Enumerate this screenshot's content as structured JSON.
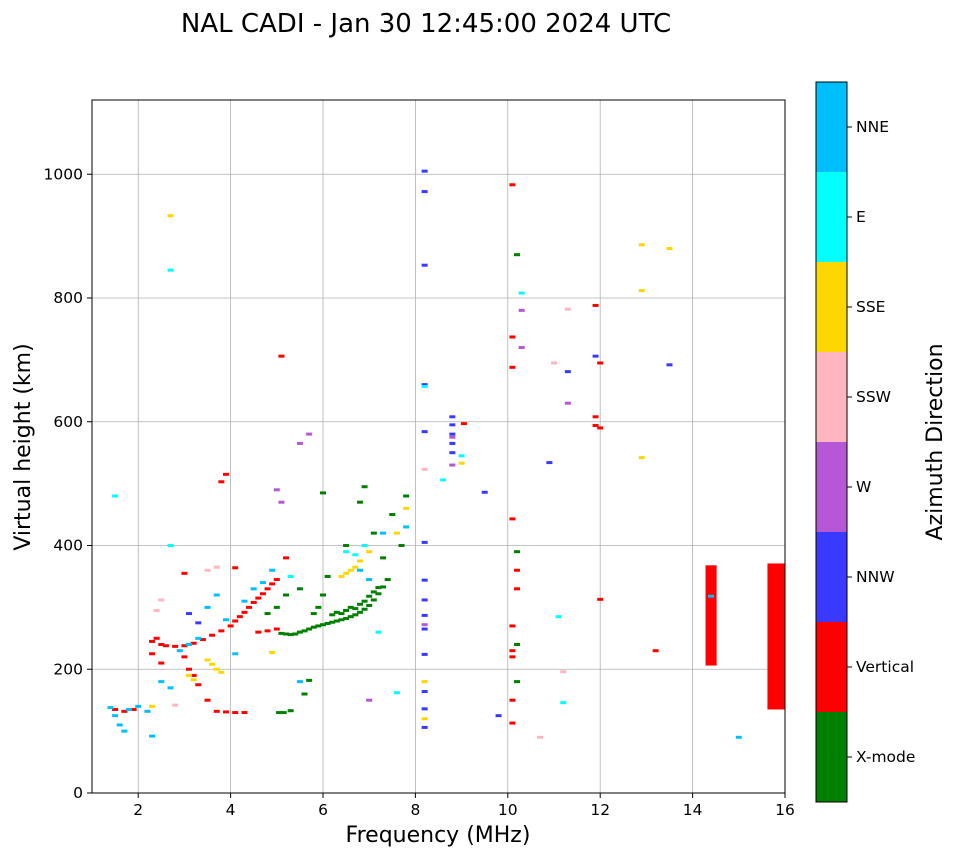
{
  "chart_data": {
    "type": "scatter",
    "title": "NAL CADI - Jan 30 12:45:00 2024 UTC",
    "xlabel": "Frequency (MHz)",
    "ylabel": "Virtual height (km)",
    "xlim": [
      1,
      16
    ],
    "ylim": [
      0,
      1120
    ],
    "xticks": [
      2,
      4,
      6,
      8,
      10,
      12,
      14,
      16
    ],
    "yticks": [
      0,
      200,
      400,
      600,
      800,
      1000
    ],
    "grid": true,
    "colorbar": {
      "label": "Azimuth Direction",
      "categories": [
        {
          "name": "X-mode",
          "color": "#008000"
        },
        {
          "name": "Vertical",
          "color": "#ff0000"
        },
        {
          "name": "NNW",
          "color": "#3a3aff"
        },
        {
          "name": "W",
          "color": "#b657d6"
        },
        {
          "name": "SSW",
          "color": "#ffb6c1"
        },
        {
          "name": "SSE",
          "color": "#ffd700"
        },
        {
          "name": "E",
          "color": "#00ffff"
        },
        {
          "name": "NNE",
          "color": "#00bfff"
        }
      ]
    },
    "series": [
      {
        "name": "X-mode",
        "points": [
          [
            5.05,
            130
          ],
          [
            5.15,
            130
          ],
          [
            5.3,
            133
          ],
          [
            5.6,
            160
          ],
          [
            5.7,
            182
          ],
          [
            5.1,
            258
          ],
          [
            5.2,
            257
          ],
          [
            5.3,
            256
          ],
          [
            5.4,
            257
          ],
          [
            5.5,
            260
          ],
          [
            5.6,
            262
          ],
          [
            5.7,
            265
          ],
          [
            5.8,
            268
          ],
          [
            5.9,
            270
          ],
          [
            6.0,
            272
          ],
          [
            6.1,
            274
          ],
          [
            6.2,
            276
          ],
          [
            6.3,
            278
          ],
          [
            6.4,
            280
          ],
          [
            6.5,
            282
          ],
          [
            6.6,
            285
          ],
          [
            6.7,
            288
          ],
          [
            6.8,
            292
          ],
          [
            6.9,
            297
          ],
          [
            7.0,
            303
          ],
          [
            7.1,
            312
          ],
          [
            7.2,
            322
          ],
          [
            7.3,
            333
          ],
          [
            7.4,
            345
          ],
          [
            6.2,
            288
          ],
          [
            6.3,
            292
          ],
          [
            6.4,
            290
          ],
          [
            6.5,
            295
          ],
          [
            6.6,
            300
          ],
          [
            6.7,
            298
          ],
          [
            6.8,
            305
          ],
          [
            6.9,
            310
          ],
          [
            7.0,
            318
          ],
          [
            7.1,
            325
          ],
          [
            7.2,
            332
          ],
          [
            5.8,
            290
          ],
          [
            5.9,
            300
          ],
          [
            6.0,
            320
          ],
          [
            6.1,
            350
          ],
          [
            6.5,
            400
          ],
          [
            6.8,
            470
          ],
          [
            6.9,
            495
          ],
          [
            7.1,
            420
          ],
          [
            7.3,
            380
          ],
          [
            7.5,
            450
          ],
          [
            5.0,
            300
          ],
          [
            5.2,
            320
          ],
          [
            4.8,
            290
          ],
          [
            5.5,
            330
          ],
          [
            7.7,
            400
          ],
          [
            7.8,
            480
          ],
          [
            10.2,
            390
          ],
          [
            10.2,
            240
          ],
          [
            10.2,
            180
          ],
          [
            10.2,
            870
          ],
          [
            6.0,
            485
          ]
        ]
      },
      {
        "name": "Vertical",
        "points": [
          [
            2.3,
            245
          ],
          [
            2.4,
            250
          ],
          [
            2.5,
            240
          ],
          [
            2.6,
            238
          ],
          [
            2.8,
            237
          ],
          [
            3.0,
            238
          ],
          [
            3.2,
            242
          ],
          [
            3.4,
            248
          ],
          [
            3.6,
            255
          ],
          [
            3.8,
            262
          ],
          [
            4.0,
            270
          ],
          [
            4.1,
            278
          ],
          [
            4.2,
            285
          ],
          [
            4.3,
            292
          ],
          [
            4.4,
            300
          ],
          [
            4.5,
            308
          ],
          [
            4.6,
            315
          ],
          [
            4.7,
            322
          ],
          [
            4.8,
            330
          ],
          [
            4.9,
            338
          ],
          [
            5.0,
            345
          ],
          [
            3.0,
            220
          ],
          [
            3.1,
            200
          ],
          [
            3.2,
            190
          ],
          [
            3.3,
            175
          ],
          [
            3.5,
            150
          ],
          [
            2.3,
            225
          ],
          [
            2.5,
            210
          ],
          [
            3.7,
            132
          ],
          [
            3.9,
            131
          ],
          [
            4.1,
            130
          ],
          [
            4.3,
            130
          ],
          [
            1.5,
            135
          ],
          [
            1.7,
            132
          ],
          [
            1.9,
            135
          ],
          [
            3.9,
            515
          ],
          [
            3.8,
            503
          ],
          [
            5.1,
            706
          ],
          [
            3.0,
            355
          ],
          [
            4.1,
            364
          ],
          [
            5.2,
            380
          ],
          [
            4.6,
            260
          ],
          [
            4.8,
            262
          ],
          [
            5.0,
            265
          ],
          [
            9.05,
            597
          ],
          [
            10.1,
            983
          ],
          [
            10.1,
            737
          ],
          [
            10.1,
            688
          ],
          [
            10.1,
            443
          ],
          [
            10.2,
            360
          ],
          [
            10.2,
            330
          ],
          [
            10.1,
            270
          ],
          [
            10.1,
            230
          ],
          [
            10.1,
            220
          ],
          [
            10.1,
            150
          ],
          [
            10.1,
            113
          ],
          [
            11.9,
            788
          ],
          [
            12.0,
            695
          ],
          [
            11.9,
            608
          ],
          [
            11.9,
            594
          ],
          [
            12.0,
            590
          ],
          [
            12.0,
            313
          ],
          [
            13.2,
            230
          ]
        ]
      },
      {
        "name": "NNW",
        "points": [
          [
            8.2,
            1005
          ],
          [
            8.2,
            972
          ],
          [
            8.2,
            853
          ],
          [
            8.2,
            660
          ],
          [
            8.2,
            584
          ],
          [
            8.2,
            405
          ],
          [
            8.2,
            344
          ],
          [
            8.2,
            312
          ],
          [
            8.2,
            287
          ],
          [
            8.2,
            265
          ],
          [
            8.2,
            224
          ],
          [
            8.2,
            164
          ],
          [
            8.2,
            136
          ],
          [
            8.2,
            106
          ],
          [
            8.8,
            608
          ],
          [
            8.8,
            595
          ],
          [
            8.8,
            580
          ],
          [
            8.8,
            565
          ],
          [
            8.8,
            550
          ],
          [
            9.5,
            486
          ],
          [
            9.8,
            125
          ],
          [
            10.9,
            534
          ],
          [
            11.9,
            706
          ],
          [
            11.3,
            681
          ],
          [
            13.5,
            692
          ],
          [
            3.1,
            290
          ],
          [
            3.3,
            275
          ]
        ]
      },
      {
        "name": "W",
        "points": [
          [
            5.0,
            490
          ],
          [
            5.1,
            470
          ],
          [
            5.7,
            580
          ],
          [
            5.5,
            565
          ],
          [
            8.8,
            575
          ],
          [
            8.8,
            530
          ],
          [
            8.2,
            272
          ],
          [
            10.3,
            780
          ],
          [
            10.3,
            720
          ],
          [
            11.3,
            630
          ],
          [
            7.0,
            150
          ]
        ]
      },
      {
        "name": "SSW",
        "points": [
          [
            2.4,
            295
          ],
          [
            2.5,
            312
          ],
          [
            3.5,
            360
          ],
          [
            3.7,
            365
          ],
          [
            2.8,
            142
          ],
          [
            11.0,
            695
          ],
          [
            11.3,
            782
          ],
          [
            11.2,
            196
          ],
          [
            10.7,
            90
          ],
          [
            8.2,
            523
          ]
        ]
      },
      {
        "name": "SSE",
        "points": [
          [
            3.5,
            215
          ],
          [
            3.6,
            208
          ],
          [
            3.7,
            200
          ],
          [
            3.8,
            195
          ],
          [
            3.1,
            190
          ],
          [
            3.2,
            183
          ],
          [
            2.3,
            140
          ],
          [
            2.7,
            933
          ],
          [
            6.4,
            350
          ],
          [
            6.5,
            355
          ],
          [
            6.6,
            360
          ],
          [
            6.7,
            365
          ],
          [
            6.8,
            375
          ],
          [
            7.0,
            390
          ],
          [
            7.6,
            420
          ],
          [
            7.8,
            460
          ],
          [
            8.2,
            180
          ],
          [
            8.2,
            120
          ],
          [
            9.0,
            533
          ],
          [
            12.9,
            886
          ],
          [
            13.5,
            880
          ],
          [
            12.9,
            812
          ],
          [
            12.9,
            542
          ],
          [
            4.9,
            227
          ]
        ]
      },
      {
        "name": "E",
        "points": [
          [
            1.5,
            480
          ],
          [
            2.7,
            845
          ],
          [
            2.7,
            400
          ],
          [
            6.5,
            390
          ],
          [
            6.7,
            385
          ],
          [
            6.9,
            400
          ],
          [
            7.6,
            162
          ],
          [
            8.2,
            657
          ],
          [
            8.6,
            506
          ],
          [
            9.0,
            545
          ],
          [
            10.3,
            808
          ],
          [
            11.1,
            285
          ],
          [
            11.2,
            146
          ],
          [
            7.2,
            260
          ],
          [
            5.3,
            350
          ]
        ]
      },
      {
        "name": "NNE",
        "points": [
          [
            1.4,
            138
          ],
          [
            1.5,
            125
          ],
          [
            1.6,
            110
          ],
          [
            1.7,
            100
          ],
          [
            1.8,
            135
          ],
          [
            2.0,
            140
          ],
          [
            2.2,
            132
          ],
          [
            2.3,
            92
          ],
          [
            2.5,
            180
          ],
          [
            2.7,
            170
          ],
          [
            2.9,
            230
          ],
          [
            3.1,
            240
          ],
          [
            3.3,
            250
          ],
          [
            3.5,
            300
          ],
          [
            3.7,
            320
          ],
          [
            3.9,
            280
          ],
          [
            4.1,
            225
          ],
          [
            4.3,
            310
          ],
          [
            4.5,
            330
          ],
          [
            4.7,
            340
          ],
          [
            4.9,
            360
          ],
          [
            5.5,
            180
          ],
          [
            6.8,
            360
          ],
          [
            7.0,
            345
          ],
          [
            7.3,
            420
          ],
          [
            7.8,
            430
          ],
          [
            14.4,
            318
          ],
          [
            15.0,
            90
          ]
        ]
      }
    ],
    "bars": [
      {
        "name": "Vertical",
        "x": [
          14.28,
          14.52
        ],
        "y": [
          206,
          368
        ]
      },
      {
        "name": "Vertical",
        "x": [
          15.62,
          16.0
        ],
        "y": [
          135,
          371
        ]
      }
    ]
  }
}
